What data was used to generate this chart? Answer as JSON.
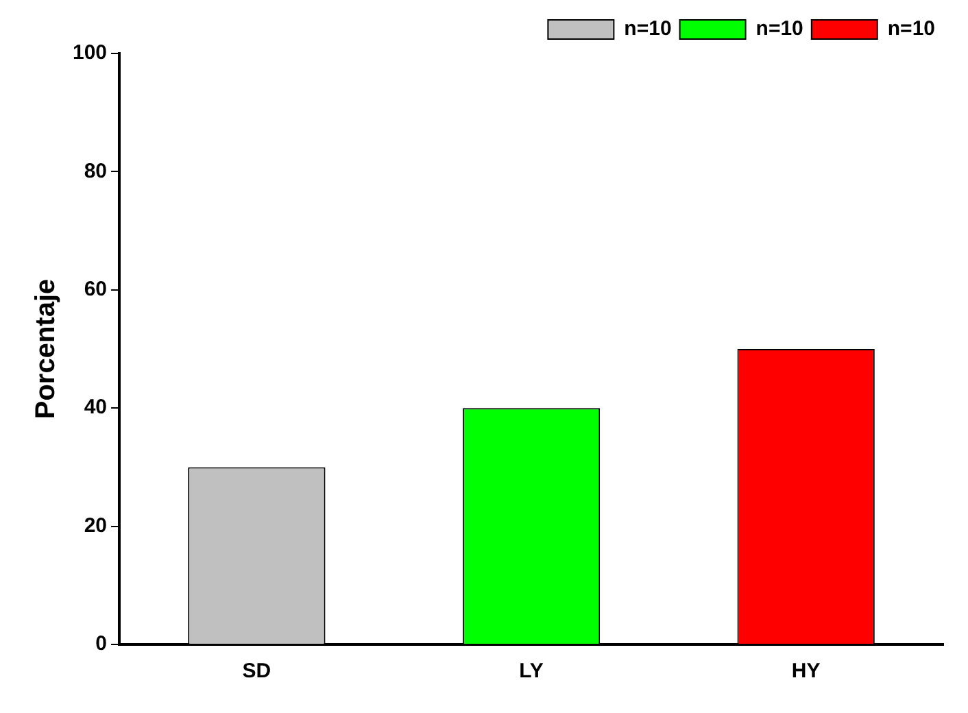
{
  "chart_data": {
    "type": "bar",
    "ylabel": "Porcentaje",
    "categories": [
      "SD",
      "LY",
      "HY"
    ],
    "series": [
      {
        "name": "n=10",
        "color": "#c0c0c0",
        "values": [
          30,
          null,
          null
        ]
      },
      {
        "name": "n=10",
        "color": "#00ff00",
        "values": [
          null,
          40,
          null
        ]
      },
      {
        "name": "n=10",
        "color": "#ff0000",
        "values": [
          null,
          null,
          50
        ]
      }
    ],
    "ylim": [
      0,
      100
    ],
    "yticks": [
      0,
      20,
      40,
      60,
      80,
      100
    ],
    "grid": false,
    "legend": "top right"
  }
}
